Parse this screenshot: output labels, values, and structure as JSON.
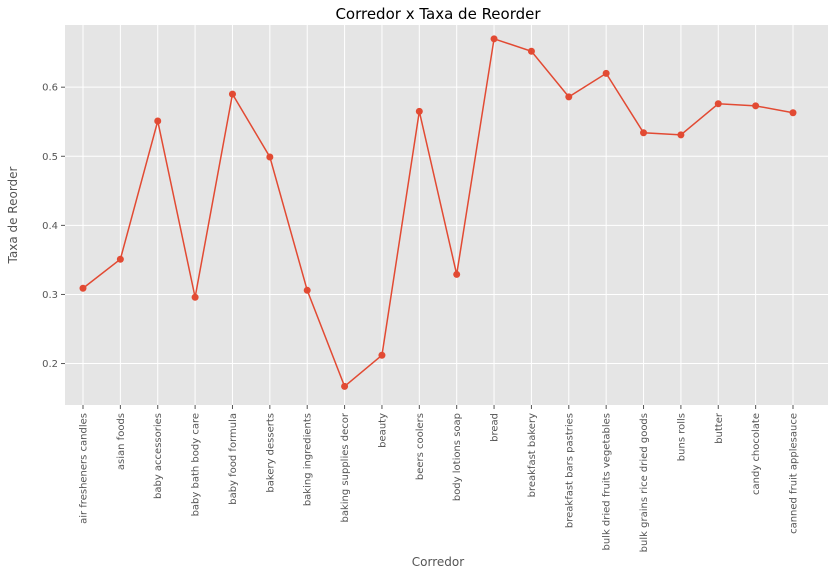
{
  "chart_data": {
    "type": "line",
    "title": "Corredor x Taxa de Reorder",
    "xlabel": "Corredor",
    "ylabel": "Taxa de Reorder",
    "ylim": [
      0.14,
      0.69
    ],
    "yticks": [
      "0.2",
      "0.3",
      "0.4",
      "0.5",
      "0.6"
    ],
    "grid": true,
    "categories": [
      "air fresheners candles",
      "asian foods",
      "baby accessories",
      "baby bath body care",
      "baby food formula",
      "bakery desserts",
      "baking ingredients",
      "baking supplies decor",
      "beauty",
      "beers coolers",
      "body lotions soap",
      "bread",
      "breakfast bakery",
      "breakfast bars pastries",
      "bulk dried fruits vegetables",
      "bulk grains rice dried goods",
      "buns rolls",
      "butter",
      "candy chocolate",
      "canned fruit applesauce"
    ],
    "series": [
      {
        "values": [
          0.309,
          0.351,
          0.551,
          0.296,
          0.59,
          0.499,
          0.306,
          0.167,
          0.212,
          0.565,
          0.329,
          0.67,
          0.652,
          0.586,
          0.62,
          0.534,
          0.531,
          0.576,
          0.573,
          0.563
        ],
        "color": "#e24a33"
      }
    ],
    "colors": {
      "plot_background": "#e5e5e5",
      "grid": "#ffffff",
      "line": "#e24a33"
    }
  }
}
